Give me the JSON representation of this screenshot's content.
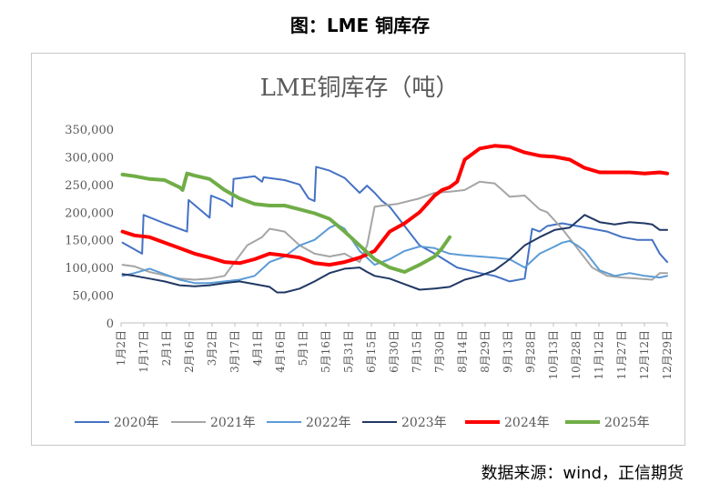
{
  "figure_title": "图：LME 铜库存",
  "source_note": "数据来源：wind，正信期货",
  "chart_data": {
    "type": "line",
    "title": "LME铜库存（吨）",
    "xlabel": "",
    "ylabel": "",
    "ylim": [
      0,
      350000
    ],
    "yticks": [
      "0",
      "50,000",
      "100,000",
      "150,000",
      "200,000",
      "250,000",
      "300,000",
      "350,000"
    ],
    "x_tick_labels": [
      "1月2日",
      "1月17日",
      "2月1日",
      "2月16日",
      "3月2日",
      "3月17日",
      "4月1日",
      "4月16日",
      "5月1日",
      "5月16日",
      "5月31日",
      "6月15日",
      "6月30日",
      "7月15日",
      "7月30日",
      "8月14日",
      "8月29日",
      "9月13日",
      "9月28日",
      "10月13日",
      "10月28日",
      "11月12日",
      "11月27日",
      "12月12日",
      "12月29日"
    ],
    "x_range": [
      1,
      365
    ],
    "grid": false,
    "legend_position": "bottom",
    "series": [
      {
        "name": "2020年",
        "color": "#4472C4",
        "width": 2,
        "x": [
          2,
          15,
          16,
          30,
          45,
          46,
          60,
          61,
          70,
          75,
          76,
          90,
          95,
          96,
          110,
          120,
          126,
          130,
          131,
          140,
          150,
          160,
          165,
          170,
          175,
          180,
          190,
          200,
          210,
          225,
          240,
          250,
          260,
          270,
          275,
          280,
          285,
          295,
          305,
          315,
          325,
          335,
          345,
          355,
          360,
          365
        ],
        "y": [
          145000,
          125000,
          195000,
          180000,
          165000,
          222000,
          190000,
          230000,
          220000,
          210000,
          260000,
          265000,
          255000,
          263000,
          258000,
          250000,
          225000,
          220000,
          282000,
          275000,
          262000,
          235000,
          248000,
          235000,
          220000,
          210000,
          175000,
          140000,
          125000,
          100000,
          90000,
          85000,
          75000,
          80000,
          170000,
          165000,
          175000,
          180000,
          175000,
          170000,
          165000,
          155000,
          150000,
          150000,
          125000,
          110000
        ]
      },
      {
        "name": "2021年",
        "color": "#A5A5A5",
        "width": 2,
        "x": [
          2,
          10,
          20,
          30,
          40,
          50,
          60,
          70,
          85,
          95,
          100,
          110,
          120,
          130,
          140,
          150,
          160,
          165,
          170,
          175,
          185,
          200,
          210,
          220,
          230,
          240,
          250,
          255,
          260,
          270,
          280,
          285,
          295,
          305,
          315,
          325,
          335,
          345,
          355,
          360,
          365
        ],
        "y": [
          105000,
          102000,
          92000,
          86000,
          80000,
          78000,
          80000,
          85000,
          140000,
          155000,
          170000,
          165000,
          140000,
          125000,
          120000,
          125000,
          110000,
          140000,
          210000,
          212000,
          215000,
          225000,
          235000,
          237000,
          240000,
          255000,
          252000,
          240000,
          228000,
          230000,
          205000,
          200000,
          170000,
          135000,
          100000,
          85000,
          82000,
          80000,
          78000,
          90000,
          90000
        ]
      },
      {
        "name": "2022年",
        "color": "#5B9BD5",
        "width": 2,
        "x": [
          2,
          10,
          20,
          30,
          40,
          50,
          60,
          70,
          80,
          90,
          100,
          110,
          120,
          130,
          140,
          145,
          150,
          160,
          170,
          180,
          190,
          200,
          210,
          215,
          220,
          230,
          240,
          250,
          260,
          270,
          280,
          290,
          295,
          300,
          305,
          310,
          320,
          330,
          340,
          350,
          360,
          365
        ],
        "y": [
          85000,
          90000,
          98000,
          88000,
          78000,
          72000,
          72000,
          75000,
          78000,
          85000,
          110000,
          120000,
          140000,
          150000,
          172000,
          178000,
          170000,
          130000,
          105000,
          115000,
          130000,
          138000,
          135000,
          130000,
          125000,
          122000,
          120000,
          118000,
          115000,
          100000,
          125000,
          138000,
          145000,
          148000,
          140000,
          130000,
          95000,
          85000,
          90000,
          85000,
          82000,
          85000
        ]
      },
      {
        "name": "2023年",
        "color": "#203864",
        "width": 2,
        "x": [
          2,
          10,
          20,
          30,
          40,
          50,
          60,
          70,
          80,
          90,
          100,
          105,
          110,
          120,
          130,
          140,
          150,
          160,
          165,
          170,
          180,
          190,
          200,
          210,
          220,
          230,
          240,
          250,
          260,
          270,
          280,
          290,
          295,
          300,
          310,
          320,
          330,
          340,
          350,
          355,
          360,
          365
        ],
        "y": [
          88000,
          85000,
          80000,
          75000,
          68000,
          66000,
          68000,
          72000,
          75000,
          70000,
          65000,
          55000,
          55000,
          62000,
          75000,
          90000,
          98000,
          100000,
          92000,
          85000,
          80000,
          70000,
          60000,
          62000,
          65000,
          78000,
          85000,
          95000,
          115000,
          140000,
          155000,
          168000,
          170000,
          172000,
          195000,
          182000,
          178000,
          182000,
          180000,
          178000,
          168000,
          168000
        ]
      },
      {
        "name": "2024年",
        "color": "#FF0000",
        "width": 4,
        "x": [
          2,
          10,
          20,
          30,
          40,
          50,
          60,
          70,
          80,
          90,
          100,
          110,
          120,
          130,
          140,
          150,
          160,
          170,
          180,
          190,
          200,
          210,
          215,
          220,
          225,
          230,
          240,
          250,
          260,
          270,
          280,
          290,
          300,
          310,
          320,
          330,
          340,
          350,
          360,
          365
        ],
        "y": [
          165000,
          158000,
          155000,
          145000,
          135000,
          125000,
          118000,
          110000,
          108000,
          115000,
          125000,
          122000,
          118000,
          108000,
          105000,
          110000,
          118000,
          130000,
          165000,
          180000,
          200000,
          230000,
          240000,
          245000,
          255000,
          295000,
          315000,
          320000,
          318000,
          308000,
          302000,
          300000,
          295000,
          280000,
          272000,
          272000,
          272000,
          270000,
          272000,
          270000
        ]
      },
      {
        "name": "2025年",
        "color": "#70AD47",
        "width": 4,
        "x": [
          2,
          10,
          20,
          30,
          40,
          42,
          45,
          50,
          60,
          70,
          80,
          90,
          100,
          110,
          120,
          130,
          140,
          150,
          160,
          170,
          180,
          190,
          200,
          210,
          215,
          220
        ],
        "y": [
          268000,
          265000,
          260000,
          258000,
          245000,
          240000,
          270000,
          266000,
          260000,
          240000,
          225000,
          215000,
          212000,
          212000,
          205000,
          198000,
          188000,
          165000,
          140000,
          115000,
          100000,
          92000,
          105000,
          120000,
          135000,
          155000
        ]
      }
    ]
  }
}
